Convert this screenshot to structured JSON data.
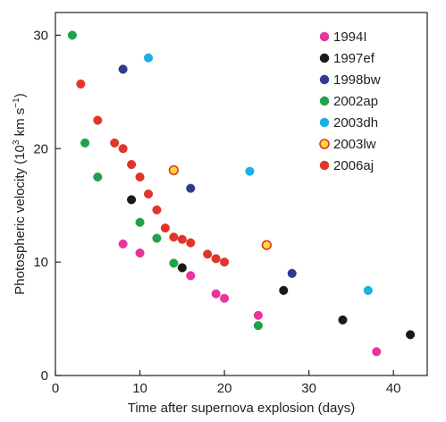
{
  "chart_data": {
    "type": "scatter",
    "xlabel": "Time after supernova explosion (days)",
    "ylabel": {
      "prefix": "Photospheric velocity (10",
      "exp1": "3",
      "middle": " km s",
      "exp2": "−1",
      "suffix": ")"
    },
    "xlim": [
      0,
      44
    ],
    "ylim": [
      0,
      32
    ],
    "xticks": [
      0,
      10,
      20,
      30,
      40
    ],
    "yticks": [
      0,
      10,
      20,
      30
    ],
    "grid": false,
    "legend_position": "top-right",
    "series": [
      {
        "name": "1994I",
        "color": "#e8359c",
        "edge": "#e8359c",
        "points": [
          [
            8,
            11.6
          ],
          [
            10,
            10.8
          ],
          [
            16,
            8.8
          ],
          [
            19,
            7.2
          ],
          [
            20,
            6.8
          ],
          [
            24,
            5.3
          ],
          [
            38,
            2.1
          ]
        ]
      },
      {
        "name": "1997ef",
        "color": "#1a1a1a",
        "edge": "#1a1a1a",
        "points": [
          [
            9,
            15.5
          ],
          [
            15,
            9.5
          ],
          [
            27,
            7.5
          ],
          [
            34,
            4.9
          ],
          [
            42,
            3.6
          ]
        ]
      },
      {
        "name": "1998bw",
        "color": "#2e3a8f",
        "edge": "#2e3a8f",
        "points": [
          [
            8,
            27.0
          ],
          [
            16,
            16.5
          ],
          [
            28,
            9.0
          ]
        ]
      },
      {
        "name": "2002ap",
        "color": "#1fa34a",
        "edge": "#1fa34a",
        "points": [
          [
            2,
            30.0
          ],
          [
            3.5,
            20.5
          ],
          [
            5,
            17.5
          ],
          [
            10,
            13.5
          ],
          [
            12,
            12.1
          ],
          [
            14,
            9.9
          ],
          [
            24,
            4.4
          ]
        ]
      },
      {
        "name": "2003dh",
        "color": "#1ab0e6",
        "edge": "#1ab0e6",
        "points": [
          [
            11,
            28.0
          ],
          [
            23,
            18.0
          ],
          [
            37,
            7.5
          ]
        ]
      },
      {
        "name": "2003lw",
        "color": "#f7e034",
        "edge": "#e0352b",
        "points": [
          [
            14,
            18.1
          ],
          [
            25,
            11.5
          ]
        ]
      },
      {
        "name": "2006aj",
        "color": "#e0352b",
        "edge": "#e0352b",
        "points": [
          [
            3,
            25.7
          ],
          [
            5,
            22.5
          ],
          [
            7,
            20.5
          ],
          [
            8,
            20.0
          ],
          [
            9,
            18.6
          ],
          [
            10,
            17.5
          ],
          [
            11,
            16.0
          ],
          [
            12,
            14.6
          ],
          [
            13,
            13.0
          ],
          [
            14,
            12.2
          ],
          [
            15,
            12.0
          ],
          [
            16,
            11.7
          ],
          [
            18,
            10.7
          ],
          [
            19,
            10.3
          ],
          [
            20,
            10.0
          ]
        ]
      }
    ]
  }
}
